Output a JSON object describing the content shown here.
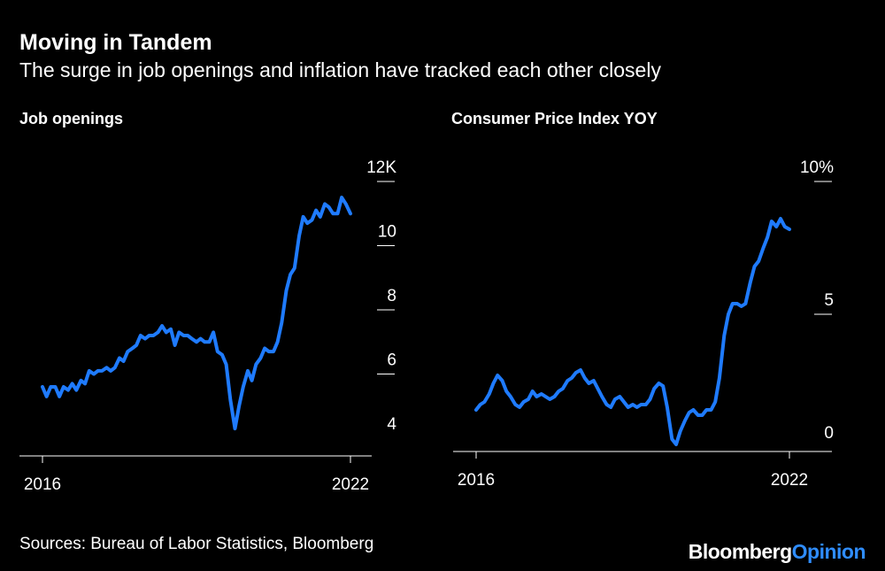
{
  "header": {
    "title": "Moving in Tandem",
    "subtitle": "The surge in job openings and inflation have tracked each other closely"
  },
  "footer": {
    "sources": "Sources: Bureau of Labor Statistics, Bloomberg",
    "brand_1": "Bloomberg",
    "brand_2": "Opinion"
  },
  "colors": {
    "background": "#000000",
    "line": "#1f7bff",
    "text": "#ffffff",
    "brand_accent": "#2f8dff"
  },
  "chart_data": [
    {
      "type": "line",
      "title": "Job openings",
      "ylim": [
        4,
        12
      ],
      "yticks": [
        4,
        6,
        8,
        10,
        12
      ],
      "ytick_labels": [
        "4",
        "6",
        "8",
        "10",
        "12K"
      ],
      "xlim": [
        2016,
        2022
      ],
      "xticks": [
        2016,
        2022
      ],
      "xtick_labels": [
        "2016",
        "2022"
      ],
      "series": [
        {
          "x": [
            2016.0,
            2016.08,
            2016.16,
            2016.25,
            2016.33,
            2016.41,
            2016.5,
            2016.58,
            2016.66,
            2016.75,
            2016.83,
            2016.91,
            2017.0,
            2017.08,
            2017.16,
            2017.25,
            2017.33,
            2017.41,
            2017.5,
            2017.58,
            2017.66,
            2017.75,
            2017.83,
            2017.91,
            2018.0,
            2018.08,
            2018.16,
            2018.25,
            2018.33,
            2018.41,
            2018.5,
            2018.58,
            2018.66,
            2018.75,
            2018.83,
            2018.91,
            2019.0,
            2019.08,
            2019.16,
            2019.25,
            2019.33,
            2019.41,
            2019.5,
            2019.58,
            2019.66,
            2019.75,
            2019.83,
            2019.91,
            2020.0,
            2020.08,
            2020.16,
            2020.25,
            2020.33,
            2020.41,
            2020.5,
            2020.58,
            2020.66,
            2020.75,
            2020.83,
            2020.91,
            2021.0,
            2021.08,
            2021.16,
            2021.25,
            2021.33,
            2021.41,
            2021.5,
            2021.58,
            2021.66,
            2021.75,
            2021.83,
            2021.91,
            2022.0
          ],
          "values": [
            5.6,
            5.3,
            5.6,
            5.6,
            5.3,
            5.6,
            5.5,
            5.7,
            5.5,
            5.8,
            5.7,
            6.1,
            6.0,
            6.1,
            6.1,
            6.2,
            6.1,
            6.2,
            6.5,
            6.4,
            6.7,
            6.8,
            6.9,
            7.2,
            7.1,
            7.2,
            7.2,
            7.3,
            7.5,
            7.3,
            7.4,
            6.9,
            7.3,
            7.2,
            7.2,
            7.1,
            7.0,
            7.1,
            7.0,
            7.0,
            7.3,
            6.7,
            6.6,
            6.3,
            5.2,
            4.3,
            5.0,
            5.6,
            6.1,
            5.8,
            6.3,
            6.5,
            6.8,
            6.7,
            6.7,
            7.0,
            7.6,
            8.6,
            9.1,
            9.3,
            10.3,
            10.9,
            10.7,
            10.8,
            11.1,
            10.9,
            11.3,
            11.2,
            11.0,
            11.0,
            11.5,
            11.3,
            11.0
          ]
        }
      ]
    },
    {
      "type": "line",
      "title": "Consumer Price Index YOY",
      "ylim": [
        0,
        10
      ],
      "yticks": [
        0,
        5,
        10
      ],
      "ytick_labels": [
        "0",
        "5",
        "10%"
      ],
      "xlim": [
        2016,
        2022
      ],
      "xticks": [
        2016,
        2022
      ],
      "xtick_labels": [
        "2016",
        "2022"
      ],
      "series": [
        {
          "x": [
            2016.0,
            2016.08,
            2016.16,
            2016.25,
            2016.33,
            2016.41,
            2016.5,
            2016.58,
            2016.66,
            2016.75,
            2016.83,
            2016.91,
            2017.0,
            2017.08,
            2017.16,
            2017.25,
            2017.33,
            2017.41,
            2017.5,
            2017.58,
            2017.66,
            2017.75,
            2017.83,
            2017.91,
            2018.0,
            2018.08,
            2018.16,
            2018.25,
            2018.33,
            2018.41,
            2018.5,
            2018.58,
            2018.66,
            2018.75,
            2018.83,
            2018.91,
            2019.0,
            2019.08,
            2019.16,
            2019.25,
            2019.33,
            2019.41,
            2019.5,
            2019.58,
            2019.66,
            2019.75,
            2019.83,
            2019.91,
            2020.0,
            2020.08,
            2020.16,
            2020.25,
            2020.33,
            2020.41,
            2020.5,
            2020.58,
            2020.66,
            2020.75,
            2020.83,
            2020.91,
            2021.0,
            2021.08,
            2021.16,
            2021.25,
            2021.33,
            2021.41,
            2021.5,
            2021.58,
            2021.66,
            2021.75,
            2021.83,
            2021.91,
            2022.0
          ],
          "values": [
            1.4,
            1.6,
            1.7,
            2.0,
            2.4,
            2.7,
            2.5,
            2.1,
            1.9,
            1.6,
            1.5,
            1.7,
            1.8,
            2.1,
            1.9,
            2.0,
            1.9,
            1.8,
            1.9,
            2.1,
            2.2,
            2.5,
            2.6,
            2.8,
            2.9,
            2.6,
            2.4,
            2.5,
            2.2,
            1.9,
            1.6,
            1.5,
            1.8,
            1.9,
            1.7,
            1.5,
            1.6,
            1.5,
            1.6,
            1.6,
            1.8,
            2.2,
            2.4,
            2.3,
            1.5,
            0.3,
            0.1,
            0.6,
            1.0,
            1.3,
            1.4,
            1.2,
            1.2,
            1.4,
            1.4,
            1.7,
            2.6,
            4.2,
            5.0,
            5.4,
            5.4,
            5.3,
            5.4,
            6.2,
            6.8,
            7.0,
            7.5,
            7.9,
            8.5,
            8.3,
            8.6,
            8.3,
            8.2
          ]
        }
      ]
    }
  ]
}
